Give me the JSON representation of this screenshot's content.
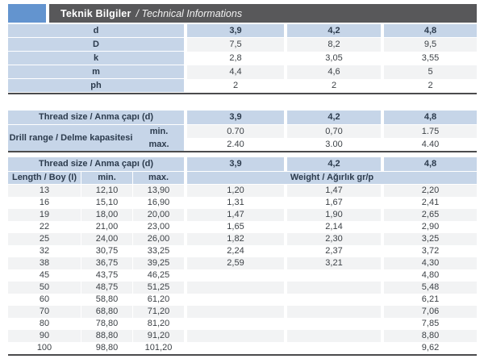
{
  "header": {
    "title_tr": "Teknik Bilgiler",
    "title_en": "/ Technical Informations"
  },
  "colors": {
    "accent_blue": "#6394cf",
    "bar_gray": "#58585a",
    "cell_blue": "#c6d5e8",
    "stripe": "#f2f3f4",
    "border_dark": "#4b4b4d"
  },
  "table1": {
    "rows": [
      {
        "label": "d",
        "values": [
          "3,9",
          "4,2",
          "4,8"
        ]
      },
      {
        "label": "D",
        "values": [
          "7,5",
          "8,2",
          "9,5"
        ]
      },
      {
        "label": "k",
        "values": [
          "2,8",
          "3,05",
          "3,55"
        ]
      },
      {
        "label": "m",
        "values": [
          "4,4",
          "4,6",
          "5"
        ]
      },
      {
        "label": "ph",
        "values": [
          "2",
          "2",
          "2"
        ]
      }
    ]
  },
  "table2": {
    "thread_label": "Thread size / Anma çapı (d)",
    "thread_values": [
      "3,9",
      "4,2",
      "4,8"
    ],
    "drill_label": "Drill range / Delme kapasitesi",
    "sub_rows": [
      {
        "label": "min.",
        "values": [
          "0.70",
          "0,70",
          "1.75"
        ]
      },
      {
        "label": "max.",
        "values": [
          "2.40",
          "3.00",
          "4.40"
        ]
      }
    ]
  },
  "table3": {
    "thread_label": "Thread size / Anma çapı (d)",
    "thread_values": [
      "3,9",
      "4,2",
      "4,8"
    ],
    "length_header": "Length / Boy (I)",
    "min_header": "min.",
    "max_header": "max.",
    "weight_header": "Weight / Ağırlık gr/p",
    "rows": [
      {
        "length": "13",
        "min": "12,10",
        "max": "13,90",
        "weights": [
          "1,20",
          "1,47",
          "2,20"
        ]
      },
      {
        "length": "16",
        "min": "15,10",
        "max": "16,90",
        "weights": [
          "1,31",
          "1,67",
          "2,41"
        ]
      },
      {
        "length": "19",
        "min": "18,00",
        "max": "20,00",
        "weights": [
          "1,47",
          "1,90",
          "2,65"
        ]
      },
      {
        "length": "22",
        "min": "21,00",
        "max": "23,00",
        "weights": [
          "1,65",
          "2,14",
          "2,90"
        ]
      },
      {
        "length": "25",
        "min": "24,00",
        "max": "26,00",
        "weights": [
          "1,82",
          "2,30",
          "3,25"
        ]
      },
      {
        "length": "32",
        "min": "30,75",
        "max": "33,25",
        "weights": [
          "2,24",
          "2,37",
          "3,72"
        ]
      },
      {
        "length": "38",
        "min": "36,75",
        "max": "39,25",
        "weights": [
          "2,59",
          "3,21",
          "4,30"
        ]
      },
      {
        "length": "45",
        "min": "43,75",
        "max": "46,25",
        "weights": [
          "",
          "",
          "4,80"
        ]
      },
      {
        "length": "50",
        "min": "48,75",
        "max": "51,25",
        "weights": [
          "",
          "",
          "5,48"
        ]
      },
      {
        "length": "60",
        "min": "58,80",
        "max": "61,20",
        "weights": [
          "",
          "",
          "6,21"
        ]
      },
      {
        "length": "70",
        "min": "68,80",
        "max": "71,20",
        "weights": [
          "",
          "",
          "7,06"
        ]
      },
      {
        "length": "80",
        "min": "78,80",
        "max": "81,20",
        "weights": [
          "",
          "",
          "7,85"
        ]
      },
      {
        "length": "90",
        "min": "88,80",
        "max": "91,20",
        "weights": [
          "",
          "",
          "8,80"
        ]
      },
      {
        "length": "100",
        "min": "98,80",
        "max": "101,20",
        "weights": [
          "",
          "",
          "9,62"
        ]
      }
    ]
  }
}
